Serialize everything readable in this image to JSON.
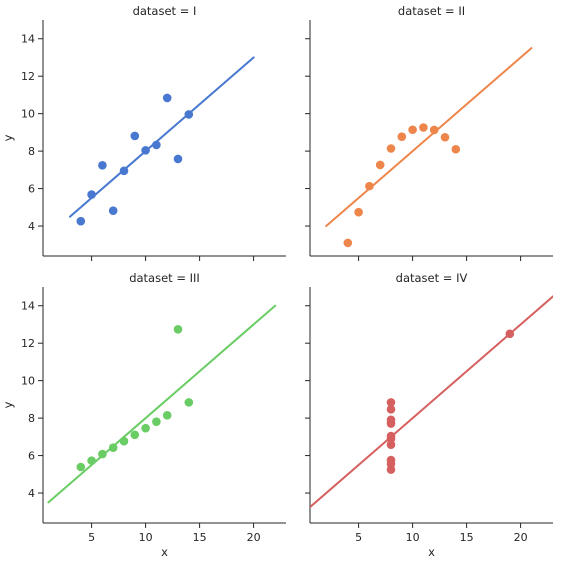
{
  "chart_data": [
    {
      "type": "scatter",
      "title": "dataset = I",
      "xlabel": "",
      "ylabel": "y",
      "xlim": [
        0.5,
        23
      ],
      "ylim": [
        2.4,
        15
      ],
      "xticks": [
        5,
        10,
        15,
        20
      ],
      "yticks": [
        4,
        6,
        8,
        10,
        12,
        14
      ],
      "show_xtick_labels": false,
      "show_ytick_labels": true,
      "color": "#4878d0",
      "fit_line": {
        "x": [
          3,
          20
        ],
        "y": [
          4.5,
          13.0
        ]
      },
      "points": [
        [
          10,
          8.04
        ],
        [
          8,
          6.95
        ],
        [
          13,
          7.58
        ],
        [
          9,
          8.81
        ],
        [
          11,
          8.33
        ],
        [
          14,
          9.96
        ],
        [
          6,
          7.24
        ],
        [
          4,
          4.26
        ],
        [
          12,
          10.84
        ],
        [
          7,
          4.82
        ],
        [
          5,
          5.68
        ]
      ]
    },
    {
      "type": "scatter",
      "title": "dataset = II",
      "xlabel": "",
      "ylabel": "",
      "xlim": [
        0.5,
        23
      ],
      "ylim": [
        2.4,
        15
      ],
      "xticks": [
        5,
        10,
        15,
        20
      ],
      "yticks": [
        4,
        6,
        8,
        10,
        12,
        14
      ],
      "show_xtick_labels": false,
      "show_ytick_labels": false,
      "color": "#ee854a",
      "fit_line": {
        "x": [
          2,
          21
        ],
        "y": [
          4.0,
          13.5
        ]
      },
      "points": [
        [
          10,
          9.14
        ],
        [
          8,
          8.14
        ],
        [
          13,
          8.74
        ],
        [
          9,
          8.77
        ],
        [
          11,
          9.26
        ],
        [
          14,
          8.1
        ],
        [
          6,
          6.13
        ],
        [
          4,
          3.1
        ],
        [
          12,
          9.13
        ],
        [
          7,
          7.26
        ],
        [
          5,
          4.74
        ]
      ]
    },
    {
      "type": "scatter",
      "title": "dataset = III",
      "xlabel": "x",
      "ylabel": "y",
      "xlim": [
        0.5,
        23
      ],
      "ylim": [
        2.4,
        15
      ],
      "xticks": [
        5,
        10,
        15,
        20
      ],
      "yticks": [
        4,
        6,
        8,
        10,
        12,
        14
      ],
      "show_xtick_labels": true,
      "show_ytick_labels": true,
      "color": "#6acc64",
      "fit_line": {
        "x": [
          1,
          22
        ],
        "y": [
          3.5,
          14.0
        ]
      },
      "points": [
        [
          10,
          7.46
        ],
        [
          8,
          6.77
        ],
        [
          13,
          12.74
        ],
        [
          9,
          7.11
        ],
        [
          11,
          7.81
        ],
        [
          14,
          8.84
        ],
        [
          6,
          6.08
        ],
        [
          4,
          5.39
        ],
        [
          12,
          8.15
        ],
        [
          7,
          6.42
        ],
        [
          5,
          5.73
        ]
      ]
    },
    {
      "type": "scatter",
      "title": "dataset = IV",
      "xlabel": "x",
      "ylabel": "",
      "xlim": [
        0.5,
        23
      ],
      "ylim": [
        2.4,
        15
      ],
      "xticks": [
        5,
        10,
        15,
        20
      ],
      "yticks": [
        4,
        6,
        8,
        10,
        12,
        14
      ],
      "show_xtick_labels": true,
      "show_ytick_labels": false,
      "color": "#d65f5f",
      "fit_line": {
        "x": [
          0.5,
          23
        ],
        "y": [
          3.25,
          14.5
        ]
      },
      "points": [
        [
          8,
          6.58
        ],
        [
          8,
          5.76
        ],
        [
          8,
          7.71
        ],
        [
          8,
          8.84
        ],
        [
          8,
          8.47
        ],
        [
          8,
          7.04
        ],
        [
          8,
          5.25
        ],
        [
          19,
          12.5
        ],
        [
          8,
          5.56
        ],
        [
          8,
          7.91
        ],
        [
          8,
          6.89
        ]
      ]
    }
  ]
}
